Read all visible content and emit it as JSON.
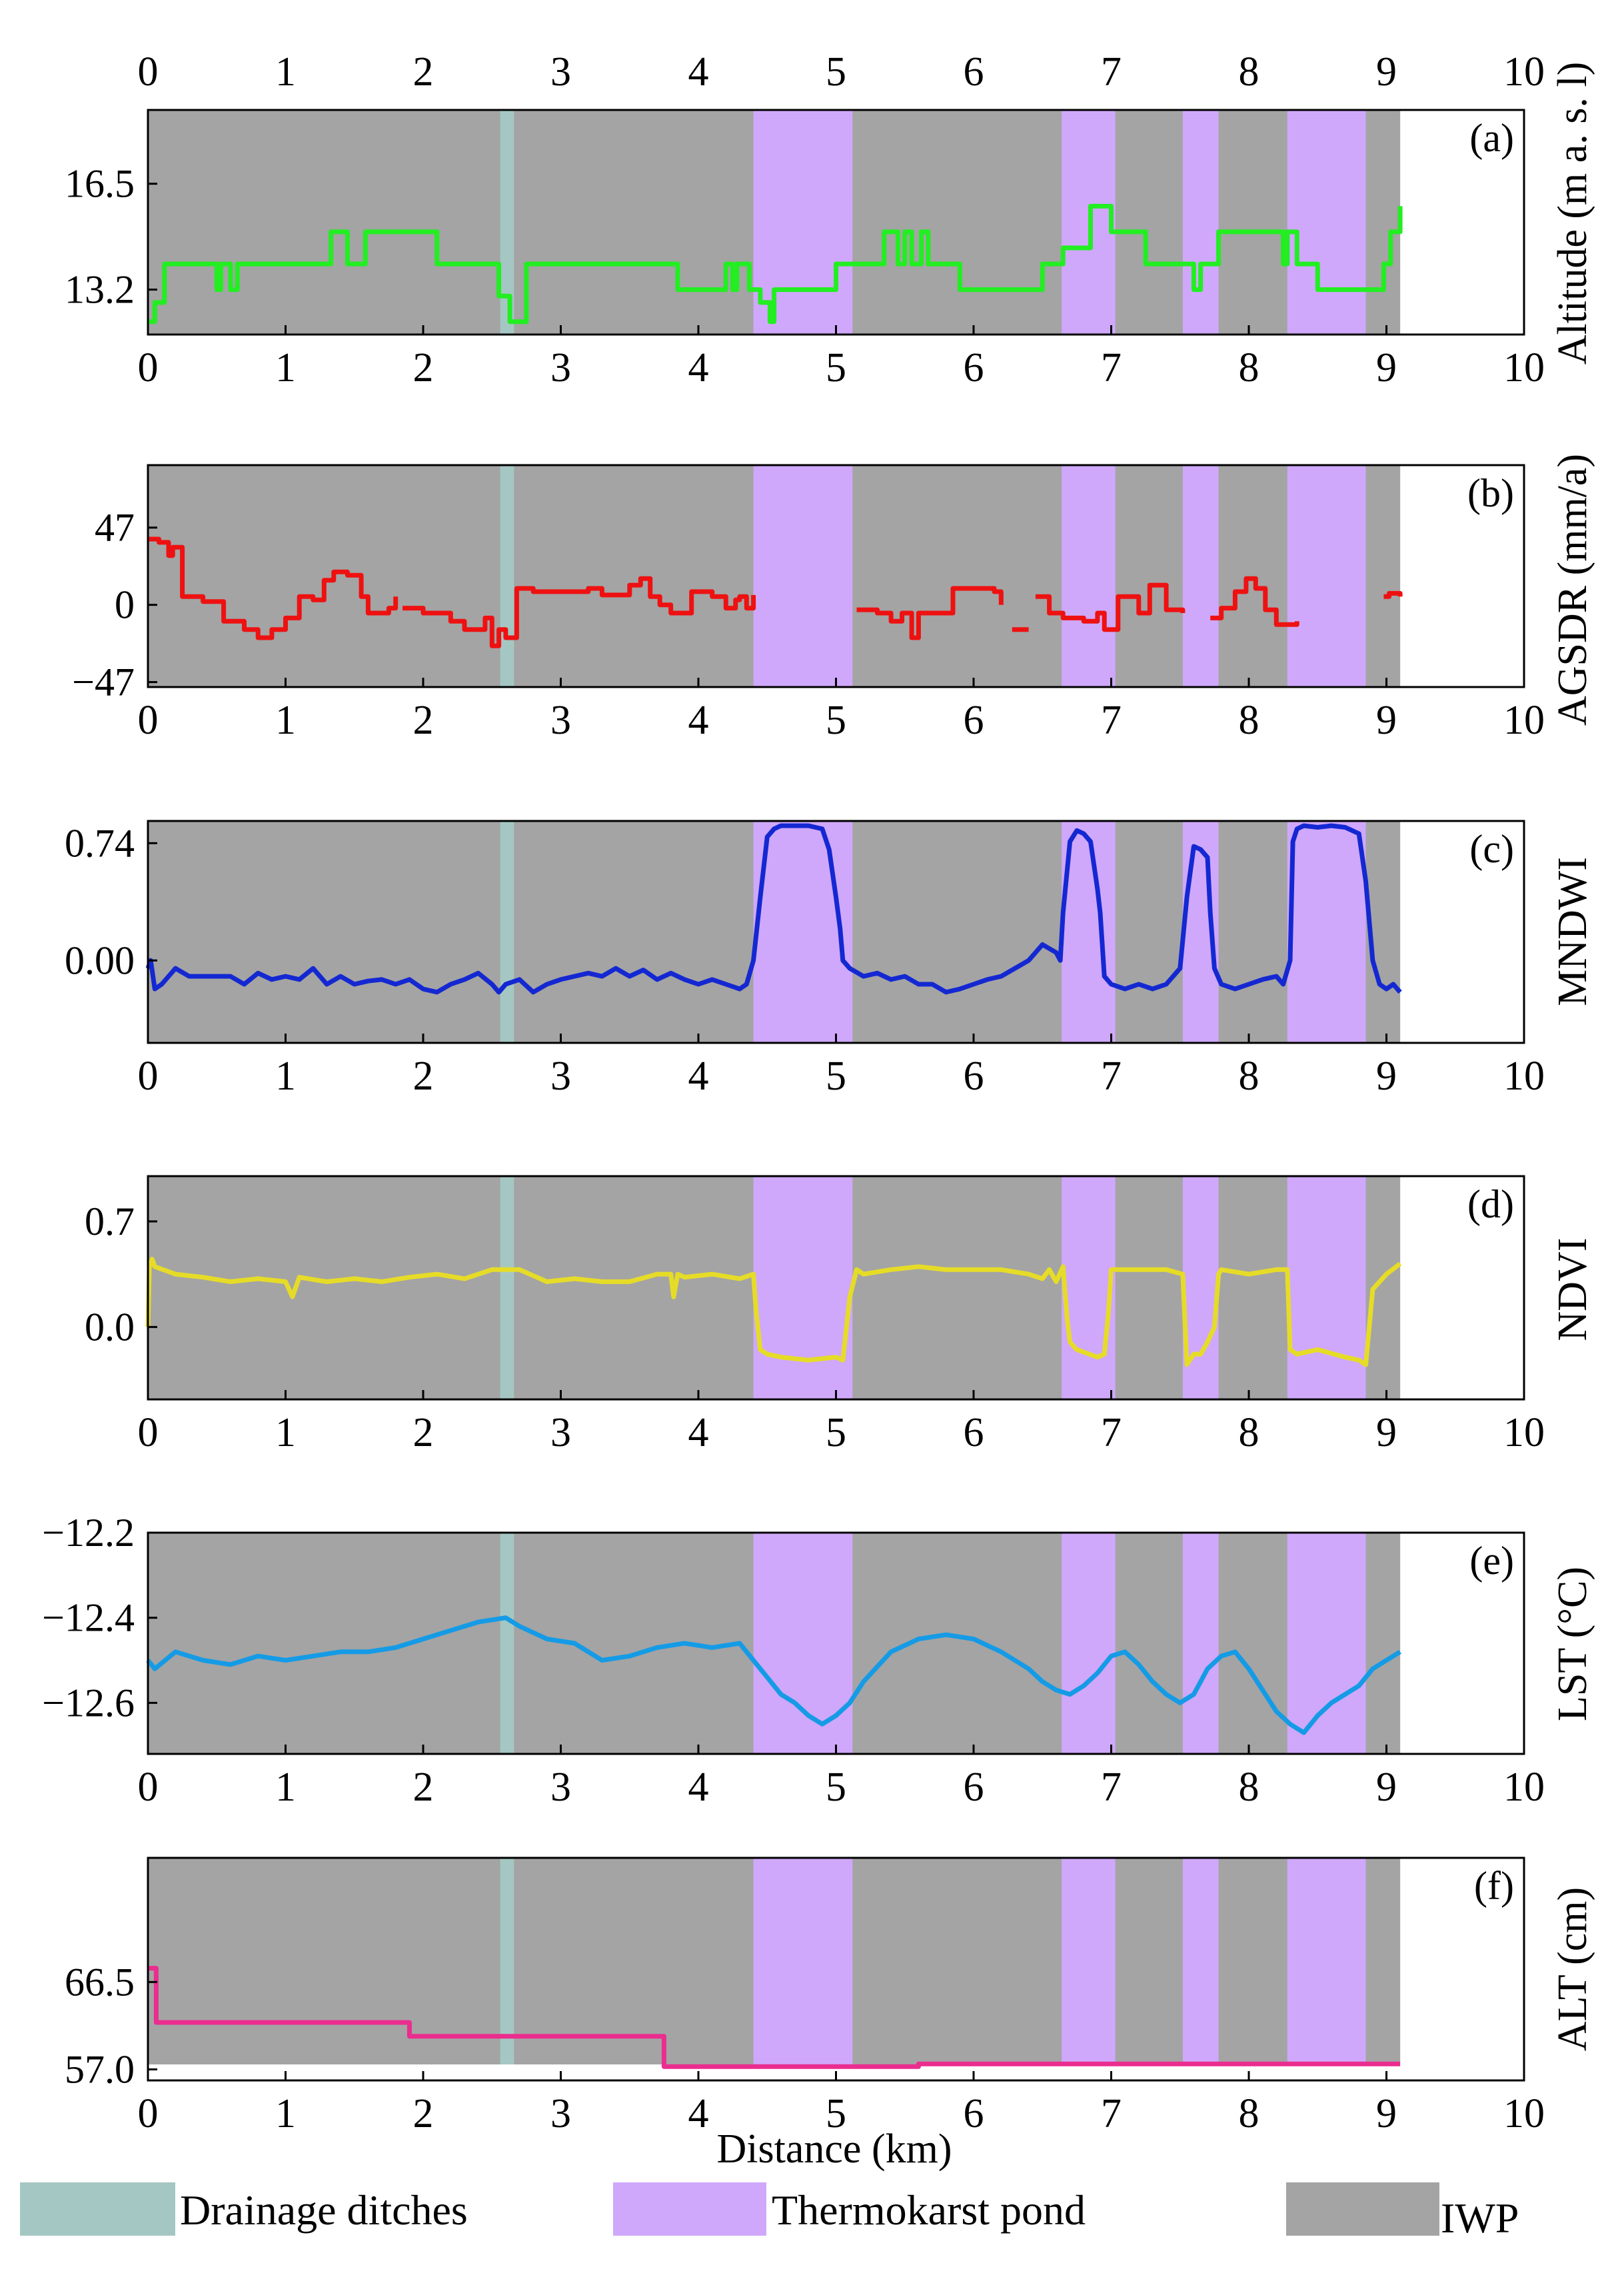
{
  "chart_data": {
    "type": "line",
    "xlabel": "Distance (km)",
    "x_ticks": [
      "0",
      "1",
      "2",
      "3",
      "4",
      "5",
      "6",
      "7",
      "8",
      "9",
      "10"
    ],
    "xlim": [
      0,
      10
    ],
    "legend": [
      {
        "label": "Drainage ditches",
        "color": "#a5c7c3"
      },
      {
        "label": "Thermokarst pond",
        "color": "#cfa8fb"
      },
      {
        "label": "IWP",
        "color": "#a4a4a4"
      }
    ],
    "colors": {
      "iwp": "#a4a4a4",
      "ditch": "#a5c7c3",
      "pond": "#cfa8fb"
    },
    "background_regions": {
      "iwp": [
        0,
        9.1
      ],
      "ditch": [
        2.56,
        2.66
      ],
      "ponds": [
        [
          4.4,
          5.12
        ],
        [
          6.64,
          7.03
        ],
        [
          7.52,
          7.78
        ],
        [
          8.28,
          8.85
        ]
      ]
    },
    "panels": [
      {
        "id": "a",
        "tag": "(a)",
        "ylabel": "Altitude (m a. s. l)",
        "color": "#22ee22",
        "ylim": [
          11.8,
          18.8
        ],
        "yticks": [
          13.2,
          16.5
        ],
        "ytick_labels": [
          "13.2",
          "16.5"
        ],
        "step": true,
        "fill_to": 9.1,
        "x": [
          0,
          0.05,
          0.12,
          0.5,
          0.53,
          0.6,
          0.65,
          1.33,
          1.45,
          1.58,
          1.65,
          2.1,
          2.55,
          2.63,
          2.75,
          3.85,
          4.2,
          4.25,
          4.28,
          4.37,
          4.45,
          4.52,
          4.55,
          5.0,
          5.35,
          5.45,
          5.5,
          5.55,
          5.62,
          5.67,
          5.9,
          6.5,
          6.65,
          6.68,
          6.85,
          6.9,
          7.0,
          7.25,
          7.6,
          7.65,
          7.78,
          7.85,
          8.25,
          8.28,
          8.35,
          8.5,
          8.98,
          9.03,
          9.1
        ],
        "y": [
          12.2,
          12.8,
          14.0,
          13.2,
          14.0,
          13.2,
          14.0,
          15.0,
          14.0,
          15.0,
          15.0,
          14.0,
          13.0,
          12.2,
          14.0,
          13.2,
          14.0,
          13.2,
          14.0,
          13.2,
          12.8,
          12.2,
          13.2,
          14.0,
          15.0,
          14.0,
          15.0,
          14.0,
          15.0,
          14.0,
          13.2,
          14.0,
          14.5,
          14.5,
          15.8,
          15.8,
          15.0,
          14.0,
          13.2,
          14.0,
          15.0,
          15.0,
          14.0,
          15.0,
          14.0,
          13.2,
          14.0,
          15.0,
          15.8
        ]
      },
      {
        "id": "b",
        "tag": "(b)",
        "ylabel": "AGSDR (mm/a)",
        "color": "#ee1111",
        "ylim": [
          -50,
          85
        ],
        "yticks": [
          -47,
          0,
          47
        ],
        "ytick_labels": [
          "−47",
          "0",
          "47"
        ],
        "step": true,
        "fill_to": 9.1,
        "segments": [
          {
            "x": [
              0,
              0.08,
              0.15,
              0.18,
              0.25,
              0.4,
              0.55,
              0.7,
              0.8,
              0.9,
              1.0,
              1.1,
              1.2,
              1.28,
              1.35,
              1.45,
              1.55,
              1.6,
              1.75,
              1.8
            ],
            "y": [
              40,
              38,
              30,
              35,
              5,
              2,
              -10,
              -15,
              -20,
              -15,
              -8,
              5,
              3,
              15,
              20,
              18,
              5,
              -5,
              -2,
              5
            ]
          },
          {
            "x": [
              1.85,
              2.0,
              2.2,
              2.3,
              2.45,
              2.5,
              2.55,
              2.6,
              2.68,
              2.8,
              3.0,
              3.2,
              3.3,
              3.5,
              3.58,
              3.65,
              3.72,
              3.8,
              3.95,
              4.1,
              4.2,
              4.27,
              4.3,
              4.35,
              4.4
            ],
            "y": [
              -2,
              -5,
              -10,
              -15,
              -8,
              -25,
              -15,
              -20,
              10,
              8,
              8,
              10,
              6,
              12,
              16,
              5,
              0,
              -5,
              8,
              5,
              -2,
              3,
              5,
              -2,
              6
            ]
          },
          {
            "x": [
              5.15,
              5.3,
              5.4,
              5.48,
              5.55,
              5.6,
              5.7,
              5.85,
              6.05,
              6.15,
              6.2
            ],
            "y": [
              -3,
              -5,
              -10,
              -5,
              -20,
              -5,
              -5,
              10,
              10,
              8,
              0
            ]
          },
          {
            "x": [
              6.28,
              6.4
            ],
            "y": [
              -15,
              -15
            ]
          },
          {
            "x": [
              6.45,
              6.55,
              6.65,
              6.8,
              6.9,
              6.95,
              7.05,
              7.2,
              7.28,
              7.4,
              7.52
            ],
            "y": [
              5,
              -5,
              -8,
              -10,
              -5,
              -15,
              5,
              -5,
              12,
              -3,
              -5
            ]
          },
          {
            "x": [
              7.72,
              7.8,
              7.9,
              7.98,
              8.05,
              8.12,
              8.2,
              8.3,
              8.35
            ],
            "y": [
              -8,
              -2,
              8,
              16,
              10,
              -3,
              -12,
              -12,
              -10
            ]
          },
          {
            "x": [
              8.98,
              9.02,
              9.1
            ],
            "y": [
              5,
              7,
              5
            ]
          }
        ]
      },
      {
        "id": "c",
        "tag": "(c)",
        "ylabel": "MNDWI",
        "color": "#1428d2",
        "ylim": [
          -0.52,
          0.88
        ],
        "yticks": [
          0.0,
          0.74
        ],
        "ytick_labels": [
          "0.00",
          "0.74"
        ],
        "step": false,
        "fill_to": 9.1,
        "x": [
          0,
          0.02,
          0.05,
          0.1,
          0.2,
          0.3,
          0.45,
          0.6,
          0.7,
          0.8,
          0.9,
          1.0,
          1.1,
          1.2,
          1.3,
          1.4,
          1.5,
          1.6,
          1.7,
          1.8,
          1.9,
          2.0,
          2.1,
          2.2,
          2.3,
          2.4,
          2.5,
          2.55,
          2.6,
          2.7,
          2.8,
          2.9,
          3.0,
          3.1,
          3.2,
          3.3,
          3.4,
          3.5,
          3.6,
          3.7,
          3.8,
          3.9,
          4.0,
          4.1,
          4.2,
          4.3,
          4.35,
          4.4,
          4.45,
          4.5,
          4.55,
          4.6,
          4.7,
          4.8,
          4.9,
          4.95,
          5.0,
          5.03,
          5.05,
          5.1,
          5.2,
          5.3,
          5.4,
          5.5,
          5.6,
          5.7,
          5.8,
          5.9,
          6.0,
          6.1,
          6.2,
          6.3,
          6.4,
          6.5,
          6.6,
          6.63,
          6.65,
          6.7,
          6.75,
          6.8,
          6.85,
          6.9,
          6.92,
          6.95,
          7.0,
          7.1,
          7.2,
          7.3,
          7.4,
          7.5,
          7.55,
          7.6,
          7.65,
          7.7,
          7.72,
          7.75,
          7.8,
          7.9,
          8.0,
          8.1,
          8.2,
          8.25,
          8.3,
          8.32,
          8.35,
          8.4,
          8.5,
          8.6,
          8.7,
          8.8,
          8.85,
          8.9,
          8.95,
          9.0,
          9.05,
          9.1
        ],
        "y": [
          -0.05,
          0.0,
          -0.18,
          -0.15,
          -0.05,
          -0.1,
          -0.1,
          -0.1,
          -0.15,
          -0.08,
          -0.12,
          -0.1,
          -0.12,
          -0.05,
          -0.15,
          -0.1,
          -0.15,
          -0.13,
          -0.12,
          -0.15,
          -0.12,
          -0.18,
          -0.2,
          -0.15,
          -0.12,
          -0.08,
          -0.15,
          -0.2,
          -0.15,
          -0.12,
          -0.2,
          -0.15,
          -0.12,
          -0.1,
          -0.08,
          -0.1,
          -0.05,
          -0.1,
          -0.06,
          -0.12,
          -0.08,
          -0.12,
          -0.15,
          -0.12,
          -0.15,
          -0.18,
          -0.15,
          0.0,
          0.4,
          0.78,
          0.83,
          0.85,
          0.85,
          0.85,
          0.83,
          0.7,
          0.4,
          0.2,
          0.0,
          -0.05,
          -0.1,
          -0.08,
          -0.12,
          -0.1,
          -0.15,
          -0.15,
          -0.2,
          -0.18,
          -0.15,
          -0.12,
          -0.1,
          -0.05,
          0.0,
          0.1,
          0.05,
          0.0,
          0.3,
          0.75,
          0.82,
          0.8,
          0.75,
          0.45,
          0.3,
          -0.1,
          -0.15,
          -0.18,
          -0.15,
          -0.18,
          -0.15,
          -0.05,
          0.4,
          0.72,
          0.7,
          0.65,
          0.3,
          -0.05,
          -0.15,
          -0.18,
          -0.15,
          -0.12,
          -0.1,
          -0.15,
          0.0,
          0.75,
          0.83,
          0.85,
          0.84,
          0.85,
          0.84,
          0.8,
          0.5,
          0.0,
          -0.15,
          -0.18,
          -0.15,
          -0.2
        ]
      },
      {
        "id": "d",
        "tag": "(d)",
        "ylabel": "NDVI",
        "color": "#e6dc28",
        "ylim": [
          -0.48,
          1.0
        ],
        "yticks": [
          0.0,
          0.7
        ],
        "ytick_labels": [
          "0.0",
          "0.7"
        ],
        "step": false,
        "fill_to": 9.1,
        "x": [
          0,
          0.01,
          0.03,
          0.05,
          0.2,
          0.4,
          0.6,
          0.8,
          1.0,
          1.05,
          1.1,
          1.3,
          1.5,
          1.7,
          1.9,
          2.1,
          2.3,
          2.5,
          2.7,
          2.9,
          3.1,
          3.3,
          3.5,
          3.7,
          3.8,
          3.82,
          3.85,
          3.9,
          4.1,
          4.3,
          4.4,
          4.42,
          4.45,
          4.5,
          4.6,
          4.8,
          5.0,
          5.05,
          5.1,
          5.15,
          5.2,
          5.4,
          5.6,
          5.8,
          6.0,
          6.2,
          6.4,
          6.5,
          6.55,
          6.6,
          6.65,
          6.68,
          6.7,
          6.75,
          6.9,
          6.95,
          6.98,
          7.0,
          7.2,
          7.4,
          7.52,
          7.55,
          7.6,
          7.65,
          7.7,
          7.75,
          7.78,
          7.8,
          8.0,
          8.2,
          8.28,
          8.3,
          8.35,
          8.5,
          8.7,
          8.8,
          8.85,
          8.9,
          9.0,
          9.1
        ],
        "y": [
          0.0,
          0.4,
          0.45,
          0.4,
          0.35,
          0.33,
          0.3,
          0.32,
          0.3,
          0.2,
          0.33,
          0.3,
          0.32,
          0.3,
          0.33,
          0.35,
          0.32,
          0.38,
          0.38,
          0.3,
          0.32,
          0.3,
          0.3,
          0.35,
          0.35,
          0.2,
          0.35,
          0.33,
          0.35,
          0.32,
          0.35,
          0.1,
          -0.15,
          -0.18,
          -0.2,
          -0.22,
          -0.2,
          -0.22,
          0.2,
          0.38,
          0.35,
          0.38,
          0.4,
          0.38,
          0.38,
          0.38,
          0.35,
          0.32,
          0.38,
          0.3,
          0.4,
          0.05,
          -0.1,
          -0.15,
          -0.2,
          -0.18,
          0.1,
          0.38,
          0.38,
          0.38,
          0.35,
          -0.25,
          -0.18,
          -0.18,
          -0.1,
          0.0,
          0.35,
          0.38,
          0.35,
          0.38,
          0.38,
          -0.15,
          -0.18,
          -0.15,
          -0.2,
          -0.22,
          -0.25,
          0.25,
          0.35,
          0.42
        ]
      },
      {
        "id": "e",
        "tag": "(e)",
        "ylabel": "LST (°C)",
        "color": "#159be6",
        "ylim": [
          -12.72,
          -12.2
        ],
        "yticks": [
          -12.2,
          -12.4,
          -12.6
        ],
        "ytick_labels": [
          "−12.2",
          "−12.4",
          "−12.6"
        ],
        "step": false,
        "fill_to": 9.1,
        "x": [
          0,
          0.05,
          0.2,
          0.4,
          0.6,
          0.8,
          1.0,
          1.2,
          1.4,
          1.6,
          1.8,
          2.0,
          2.2,
          2.4,
          2.6,
          2.7,
          2.9,
          3.1,
          3.3,
          3.5,
          3.7,
          3.9,
          4.1,
          4.3,
          4.4,
          4.5,
          4.6,
          4.7,
          4.8,
          4.9,
          5.0,
          5.1,
          5.2,
          5.4,
          5.6,
          5.8,
          6.0,
          6.2,
          6.4,
          6.5,
          6.6,
          6.7,
          6.8,
          6.9,
          7.0,
          7.1,
          7.2,
          7.3,
          7.4,
          7.5,
          7.6,
          7.7,
          7.8,
          7.9,
          8.0,
          8.1,
          8.2,
          8.3,
          8.4,
          8.5,
          8.6,
          8.7,
          8.8,
          8.9,
          9.0,
          9.1
        ],
        "y": [
          -12.5,
          -12.52,
          -12.48,
          -12.5,
          -12.51,
          -12.49,
          -12.5,
          -12.49,
          -12.48,
          -12.48,
          -12.47,
          -12.45,
          -12.43,
          -12.41,
          -12.4,
          -12.42,
          -12.45,
          -12.46,
          -12.5,
          -12.49,
          -12.47,
          -12.46,
          -12.47,
          -12.46,
          -12.5,
          -12.54,
          -12.58,
          -12.6,
          -12.63,
          -12.65,
          -12.63,
          -12.6,
          -12.55,
          -12.48,
          -12.45,
          -12.44,
          -12.45,
          -12.48,
          -12.52,
          -12.55,
          -12.57,
          -12.58,
          -12.56,
          -12.53,
          -12.49,
          -12.48,
          -12.51,
          -12.55,
          -12.58,
          -12.6,
          -12.58,
          -12.52,
          -12.49,
          -12.48,
          -12.52,
          -12.57,
          -12.62,
          -12.65,
          -12.67,
          -12.63,
          -12.6,
          -12.58,
          -12.56,
          -12.52,
          -12.5,
          -12.48
        ]
      },
      {
        "id": "f",
        "tag": "(f)",
        "ylabel": "ALT (cm)",
        "color": "#ea2d8e",
        "ylim": [
          55.8,
          80.0
        ],
        "yticks": [
          57.0,
          66.5
        ],
        "ytick_labels": [
          "57.0",
          "66.5"
        ],
        "step": true,
        "fill_to": 9.1,
        "x": [
          0,
          0.06,
          1.9,
          3.75,
          5.6,
          9.1
        ],
        "y": [
          68.0,
          62.1,
          60.6,
          57.3,
          57.6,
          57.6
        ]
      }
    ]
  }
}
